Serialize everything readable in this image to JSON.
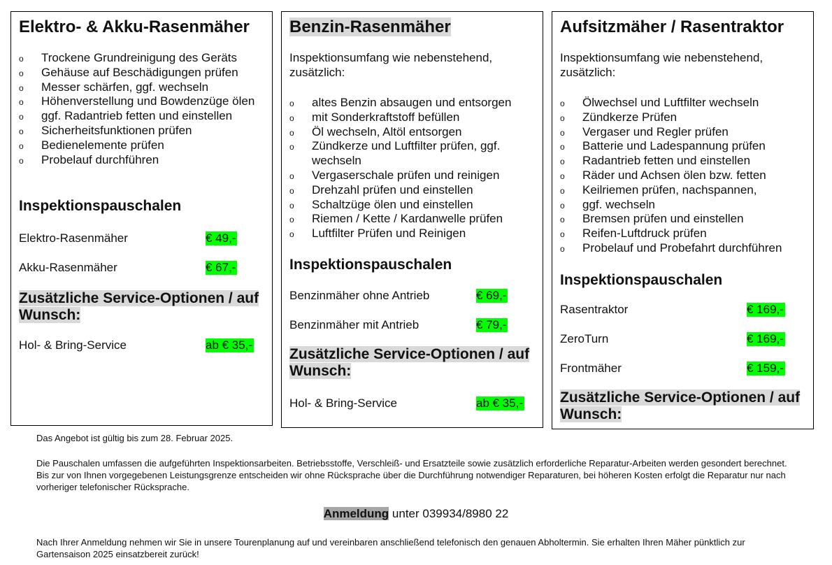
{
  "columns": [
    {
      "title": "Elektro- & Akku-Rasenmäher",
      "title_highlight": false,
      "intro": "",
      "items": [
        "Trockene Grundreinigung des Geräts",
        "Gehäuse auf Beschädigungen prüfen",
        "Messer schärfen, ggf. wechseln",
        "Höhenverstellung und Bowdenzüge ölen",
        "ggf. Radantrieb fetten und einstellen",
        "Sicherheitsfunktionen prüfen",
        "Bedienelemente prüfen",
        "Probelauf durchführen"
      ],
      "pauschalen_title": "Inspektionspauschalen",
      "prices": [
        {
          "label": "Elektro-Rasenmäher",
          "price": "€ 49,-"
        },
        {
          "label": "Akku-Rasenmäher",
          "price": "€ 67,-"
        }
      ],
      "options_title": "Zusätzliche Service-Optionen / auf Wunsch:",
      "options": [
        {
          "label": "Hol- & Bring-Service",
          "price": "ab € 35,-"
        }
      ]
    },
    {
      "title": "Benzin-Rasenmäher",
      "title_highlight": true,
      "intro": "Inspektionsumfang wie nebenstehend, zusätzlich:",
      "items": [
        "altes Benzin absaugen und entsorgen",
        "mit Sonderkraftstoff befüllen",
        "Öl wechseln, Altöl entsorgen",
        "Zündkerze und Luftfilter prüfen, ggf. wechseln",
        "Vergaserschale prüfen und reinigen",
        "Drehzahl prüfen und einstellen",
        "Schaltzüge ölen und einstellen",
        "Riemen / Kette / Kardanwelle prüfen",
        "Luftfilter Prüfen und Reinigen"
      ],
      "pauschalen_title": "Inspektionspauschalen",
      "prices": [
        {
          "label": "Benzinmäher ohne Antrieb",
          "price": "€ 69,-"
        },
        {
          "label": "Benzinmäher mit Antrieb",
          "price": "€ 79,-"
        }
      ],
      "options_title": "Zusätzliche Service-Optionen / auf Wunsch:",
      "options": [
        {
          "label": "Hol- & Bring-Service",
          "price": "ab € 35,-"
        }
      ]
    },
    {
      "title": "Aufsitzmäher / Rasentraktor",
      "title_highlight": false,
      "intro": "Inspektionsumfang wie nebenstehend, zusätzlich:",
      "items": [
        "Ölwechsel und Luftfilter wechseln",
        "Zündkerze Prüfen",
        "Vergaser und Regler prüfen",
        "Batterie und Ladespannung prüfen",
        "Radantrieb fetten und einstellen",
        "Räder und Achsen ölen bzw. fetten",
        "Keilriemen prüfen, nachspannen,",
        "ggf. wechseln",
        "Bremsen prüfen und einstellen",
        "Reifen-Luftdruck prüfen",
        "Probelauf und Probefahrt durchführen"
      ],
      "pauschalen_title": "Inspektionspauschalen",
      "prices": [
        {
          "label": "Rasentraktor",
          "price": "€ 169,-"
        },
        {
          "label": "ZeroTurn",
          "price": "€ 169,-"
        },
        {
          "label": "Frontmäher",
          "price": "€ 159,-"
        }
      ],
      "options_title": "Zusätzliche Service-Optionen / auf Wunsch:",
      "options": []
    }
  ],
  "footer": {
    "validity": "Das Angebot ist gültig bis zum 28. Februar 2025.",
    "terms": "Die Pauschalen umfassen die aufgeführten Inspektionsarbeiten. Betriebsstoffe, Verschleiß- und Ersatzteile sowie zusätzlich erforderliche Reparatur-Arbeiten werden gesondert berechnet. Bis zur von Ihnen vorgegebenen Leistungsgrenze entscheiden wir ohne Rücksprache über die Durchführung notwendiger Reparaturen, bei höheren Kosten erfolgt die Reparatur nur nach vorheriger telefonischer Rücksprache.",
    "registration_keyword": "Anmeldung",
    "registration_text": " unter 039934/8980 22",
    "closing": "Nach Ihrer Anmeldung nehmen wir Sie in unsere Tourenplanung auf und vereinbaren anschließend telefonisch den genauen Abholtermin. Sie erhalten Ihren Mäher pünktlich zur Gartensaison 2025 einsatzbereit zurück!"
  },
  "colors": {
    "price_highlight": "#00ff00",
    "heading_highlight": "#d9d9d9",
    "registration_highlight": "#a6a6a6"
  }
}
